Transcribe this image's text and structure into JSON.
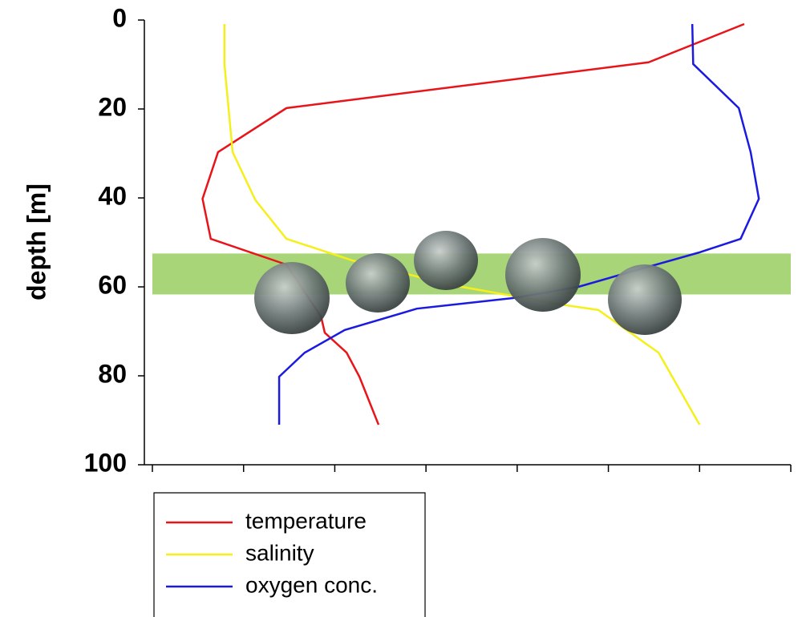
{
  "chart_data": {
    "type": "line",
    "y_label": "depth [m]",
    "ylim": [
      0,
      100
    ],
    "yticks": [
      0,
      20,
      40,
      60,
      80,
      100
    ],
    "y_inverted": true,
    "xlim": [
      0,
      7
    ],
    "xticks": [
      0,
      1,
      2,
      3,
      4,
      5,
      6,
      7
    ],
    "xtick_labels": false,
    "highlight_depth": [
      52.5,
      61.7
    ],
    "highlight_color": "#a8d578",
    "series": [
      {
        "name": "temperature",
        "color": "#e8141a",
        "x": [
          6.49,
          5.44,
          1.47,
          0.72,
          0.55,
          0.64,
          1.47,
          1.85,
          1.89,
          2.13,
          2.27,
          2.48
        ],
        "y": [
          0.9,
          9.5,
          19.8,
          29.7,
          40.2,
          49.2,
          55,
          66.7,
          70.3,
          74.8,
          80.2,
          91
        ]
      },
      {
        "name": "salinity",
        "color": "#f5ef1a",
        "x": [
          0.79,
          0.79,
          0.88,
          1.13,
          1.47,
          2.2,
          3.26,
          4.49,
          4.89,
          5.55,
          6.0
        ],
        "y": [
          0.9,
          9.9,
          29.7,
          40.5,
          49.2,
          54.1,
          59.5,
          64,
          65.2,
          74.8,
          91
        ]
      },
      {
        "name": "oxygen conc.",
        "color": "#1a1ae0",
        "x": [
          5.92,
          5.93,
          6.43,
          6.56,
          6.65,
          6.45,
          5.99,
          5.28,
          4.67,
          3.96,
          2.9,
          2.11,
          1.67,
          1.39,
          1.39
        ],
        "y": [
          0.9,
          9.9,
          19.8,
          29.7,
          40.2,
          49.2,
          52.3,
          56.4,
          60,
          62.5,
          64.9,
          69.7,
          74.8,
          80.2,
          91
        ]
      }
    ]
  }
}
